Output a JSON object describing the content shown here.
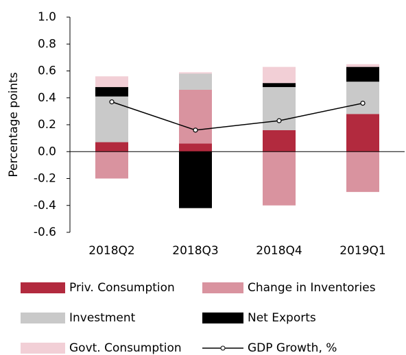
{
  "chart_data": {
    "type": "bar",
    "stacked": true,
    "y_label": "Percentage points",
    "categories": [
      "2018Q2",
      "2018Q3",
      "2018Q4",
      "2019Q1"
    ],
    "series": [
      {
        "name": "Priv. Consumption",
        "color": "#b22a3e",
        "values": [
          0.07,
          0.06,
          0.16,
          0.28
        ]
      },
      {
        "name": "Change in Inventories",
        "color": "#d9939f",
        "values": [
          -0.2,
          0.4,
          -0.4,
          -0.3
        ]
      },
      {
        "name": "Investment",
        "color": "#c9c9c9",
        "values": [
          0.34,
          0.12,
          0.32,
          0.24
        ]
      },
      {
        "name": "Net Exports",
        "color": "#000000",
        "values": [
          0.07,
          -0.42,
          0.03,
          0.11
        ]
      },
      {
        "name": "Govt. Consumption",
        "color": "#f2cfd6",
        "values": [
          0.08,
          0.01,
          0.12,
          0.02
        ]
      },
      {
        "name": "GDP Growth, %",
        "type": "line",
        "color": "#000000",
        "values": [
          0.37,
          0.16,
          0.23,
          0.36
        ]
      }
    ],
    "ylim": [
      -0.6,
      1.0
    ],
    "yticks": [
      -0.6,
      -0.4,
      -0.2,
      {
        "value": 0,
        "label": "0.0"
      },
      0.2,
      0.4,
      0.6,
      0.8,
      {
        "value": 1,
        "label": "1.0"
      }
    ],
    "grid": false
  }
}
